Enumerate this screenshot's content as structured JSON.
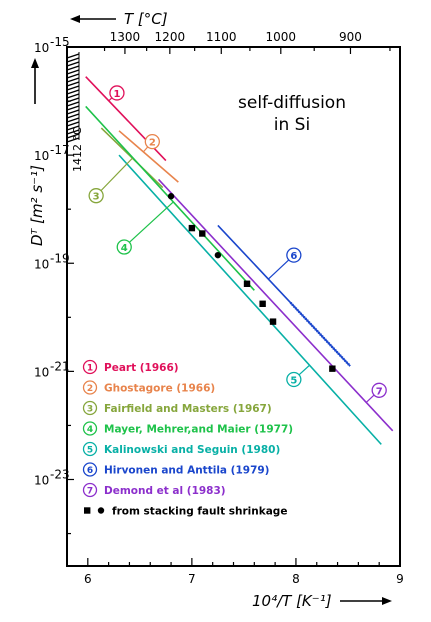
{
  "chart_data": {
    "type": "line",
    "title": "",
    "annotation": "self-diffusion\nin Si",
    "xlabel": "10⁴/T [K⁻¹]",
    "x2label": "T [°C]",
    "ylabel": "Dᵀ [m² s⁻¹]",
    "xlim": [
      5.8,
      9.0
    ],
    "ylim_exp": [
      -24.6,
      -15
    ],
    "y_log": true,
    "x_ticks": [
      6,
      7,
      8,
      9
    ],
    "x_tick_labels": [
      "6",
      "7",
      "8",
      "9"
    ],
    "y_ticks_exp": [
      -15,
      -17,
      -19,
      -21,
      -23
    ],
    "y_tick_labels": [
      "10",
      "10",
      "10",
      "10",
      "10"
    ],
    "y_tick_exponents": [
      "-15",
      "-17",
      "-19",
      "-21",
      "-23"
    ],
    "top_ticks_C": [
      1300,
      1200,
      1100,
      1000,
      900
    ],
    "top_tick_labels": [
      "1300",
      "1200",
      "1100",
      "1000",
      "900"
    ],
    "melting_label": "1412 °C",
    "melting_x": 5.8,
    "series": [
      {
        "id": "1",
        "name": "Peart (1966)",
        "color": "#e0105a",
        "x": [
          5.98,
          6.75
        ],
        "y_exp": [
          -15.55,
          -17.1
        ],
        "label_at": [
          6.28,
          -15.85
        ]
      },
      {
        "id": "2",
        "name": "Ghostagore (1966)",
        "color": "#e8844c",
        "x": [
          6.3,
          6.87
        ],
        "y_exp": [
          -16.55,
          -17.5
        ],
        "label_at": [
          6.62,
          -16.75
        ]
      },
      {
        "id": "3",
        "name": "Fairfield and Masters (1967)",
        "color": "#86a63c",
        "x": [
          6.13,
          6.72
        ],
        "y_exp": [
          -16.5,
          -17.6
        ],
        "label_at": [
          6.08,
          -17.75
        ]
      },
      {
        "id": "4",
        "name": "Mayer, Mehrer,and Maier (1977)",
        "color": "#1ec24a",
        "x": [
          5.98,
          7.6
        ],
        "y_exp": [
          -16.1,
          -19.5
        ],
        "label_at": [
          6.35,
          -18.7
        ]
      },
      {
        "id": "5",
        "name": "Kalinowski and Seguin (1980)",
        "color": "#08b0a6",
        "x": [
          6.3,
          8.82
        ],
        "y_exp": [
          -17.0,
          -22.35
        ],
        "label_at": [
          7.98,
          -21.15
        ]
      },
      {
        "id": "6",
        "name": "Hirvonen and Anttila (1979)",
        "color": "#1a46cc",
        "x": [
          7.25,
          8.52
        ],
        "y_exp": [
          -18.3,
          -20.9
        ],
        "label_at": [
          7.98,
          -18.85
        ]
      },
      {
        "id": "7",
        "name": "Demond et al (1983)",
        "color": "#8c2fcc",
        "x": [
          6.68,
          8.93
        ],
        "y_exp": [
          -17.45,
          -22.1
        ],
        "label_at": [
          8.8,
          -21.35
        ]
      }
    ],
    "markers": {
      "name": "from stacking fault shrinkage",
      "circles": [
        [
          6.8,
          -17.76
        ],
        [
          7.25,
          -18.85
        ]
      ],
      "squares": [
        [
          7.0,
          -18.35
        ],
        [
          7.1,
          -18.45
        ],
        [
          7.53,
          -19.38
        ],
        [
          7.68,
          -19.75
        ],
        [
          7.78,
          -20.08
        ],
        [
          8.35,
          -20.95
        ]
      ]
    }
  }
}
